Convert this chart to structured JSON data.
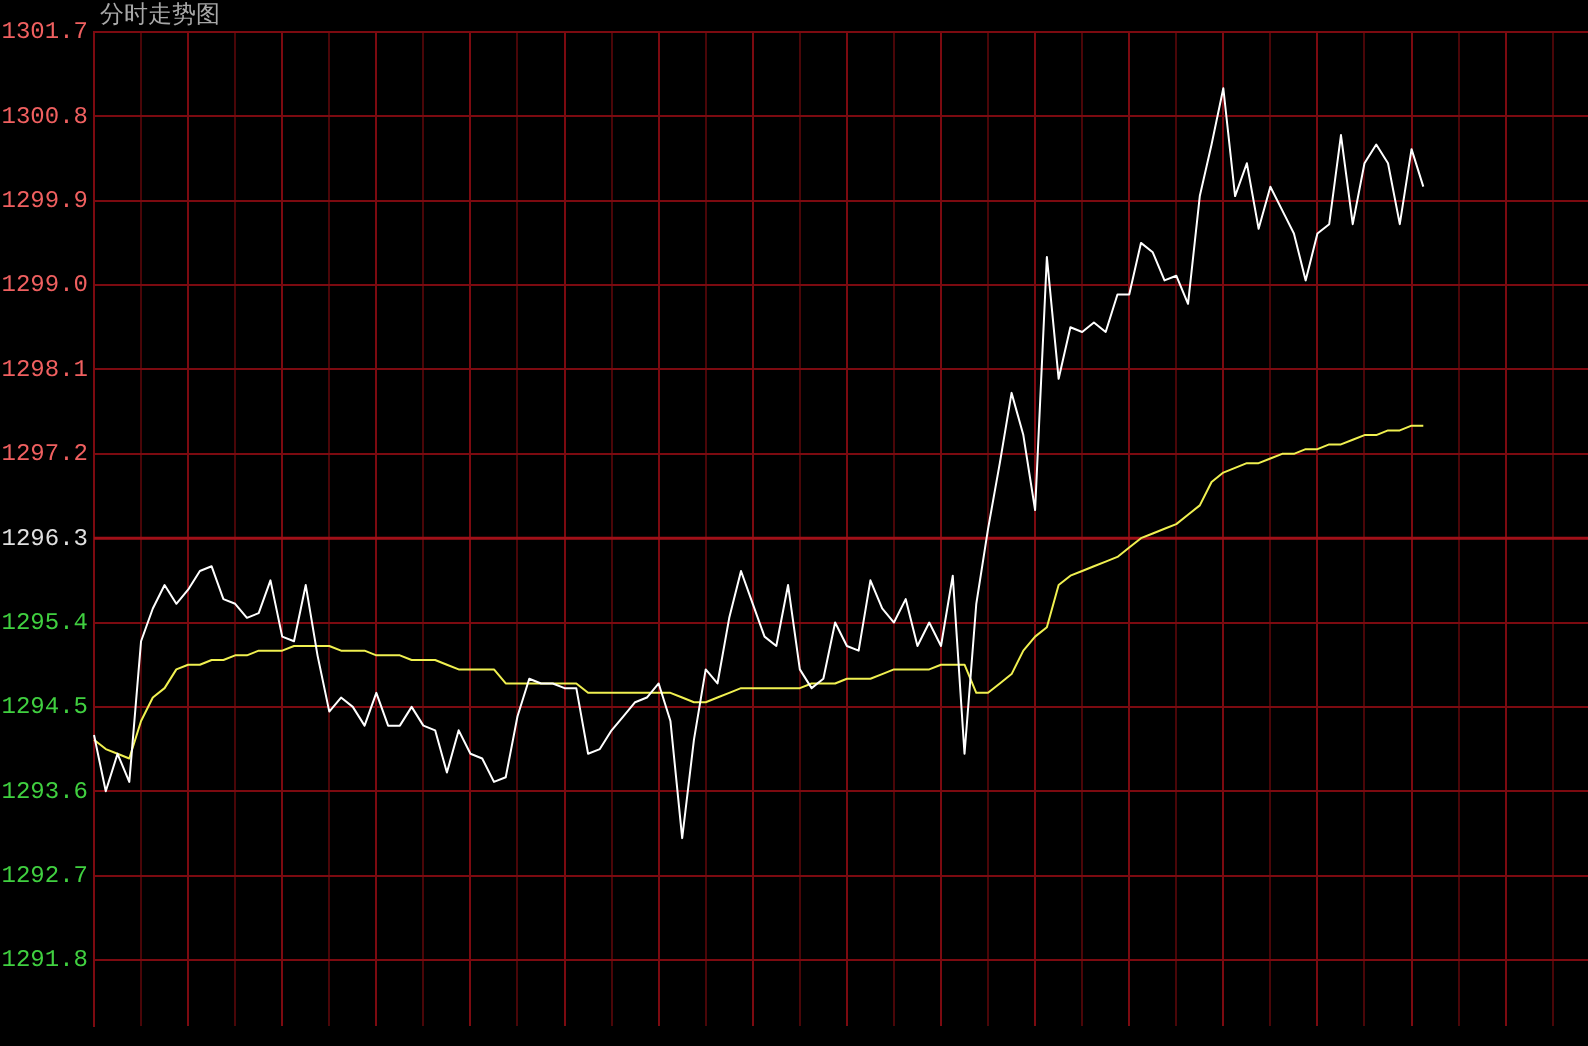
{
  "chart_data": {
    "type": "line",
    "title": "分时走势图",
    "categories": [
      null,
      null,
      null,
      null,
      null,
      null,
      null,
      null,
      null,
      null,
      null,
      null,
      null,
      null,
      null,
      null,
      null,
      null,
      null,
      null,
      null,
      null,
      null,
      null,
      null,
      null,
      null,
      null,
      null,
      null,
      null,
      null,
      null,
      null,
      null,
      null,
      null,
      null,
      null,
      null,
      null,
      null,
      null,
      null,
      null,
      null,
      null,
      null,
      null,
      null,
      null,
      null,
      null,
      null,
      null,
      null,
      null,
      null,
      null,
      null,
      null,
      null,
      null,
      null,
      null,
      null,
      null,
      null,
      null,
      null,
      null,
      null,
      null,
      null,
      null,
      null,
      null,
      null,
      null,
      null,
      null,
      null,
      null,
      null,
      null,
      null,
      null,
      null,
      null,
      null,
      null,
      null,
      null,
      null,
      null,
      null,
      null,
      null,
      null,
      null,
      null,
      null,
      null,
      null,
      null,
      null,
      null,
      null,
      null,
      null,
      null,
      null,
      null,
      null,
      null,
      null,
      null,
      null,
      null,
      null,
      null,
      null,
      null,
      null,
      null,
      null,
      null,
      null
    ],
    "series": [
      {
        "color": "#ffffff",
        "values": [
          1294.2,
          1293.6,
          1294.0,
          1293.7,
          1295.2,
          1295.55,
          1295.8,
          1295.6,
          1295.75,
          1295.95,
          1296.0,
          1295.65,
          1295.6,
          1295.45,
          1295.5,
          1295.85,
          1295.25,
          1295.2,
          1295.8,
          1295.05,
          1294.45,
          1294.6,
          1294.5,
          1294.3,
          1294.65,
          1294.3,
          1294.3,
          1294.5,
          1294.3,
          1294.25,
          1293.8,
          1294.25,
          1294.0,
          1293.95,
          1293.7,
          1293.75,
          1294.4,
          1294.8,
          1294.75,
          1294.75,
          1294.7,
          1294.7,
          1294.0,
          1294.05,
          1294.25,
          1294.4,
          1294.55,
          1294.6,
          1294.75,
          1294.35,
          1293.1,
          1294.15,
          1294.9,
          1294.75,
          1295.45,
          1295.95,
          1295.6,
          1295.25,
          1295.15,
          1295.8,
          1294.9,
          1294.7,
          1294.8,
          1295.4,
          1295.15,
          1295.1,
          1295.85,
          1295.55,
          1295.4,
          1295.65,
          1295.15,
          1295.4,
          1295.15,
          1295.9,
          1294.0,
          1295.6,
          1296.4,
          1297.1,
          1297.85,
          1297.4,
          1296.6,
          1299.3,
          1298.0,
          1298.55,
          1298.5,
          1298.6,
          1298.5,
          1298.9,
          1298.9,
          1299.45,
          1299.35,
          1299.05,
          1299.1,
          1298.8,
          1299.95,
          1300.5,
          1301.1,
          1299.95,
          1300.3,
          1299.6,
          1300.05,
          1299.8,
          1299.55,
          1299.05,
          1299.55,
          1299.65,
          1300.6,
          1299.65,
          1300.3,
          1300.5,
          1300.3,
          1299.65,
          1300.45,
          1300.05,
          null,
          null,
          null,
          null,
          null,
          null,
          null,
          null,
          null,
          null,
          null,
          null,
          null,
          null
        ]
      },
      {
        "color": "#f0f050",
        "values": [
          1294.15,
          1294.05,
          1294.0,
          1293.95,
          1294.35,
          1294.6,
          1294.7,
          1294.9,
          1294.95,
          1294.95,
          1295.0,
          1295.0,
          1295.05,
          1295.05,
          1295.1,
          1295.1,
          1295.1,
          1295.15,
          1295.15,
          1295.15,
          1295.15,
          1295.1,
          1295.1,
          1295.1,
          1295.05,
          1295.05,
          1295.05,
          1295.0,
          1295.0,
          1295.0,
          1294.95,
          1294.9,
          1294.9,
          1294.9,
          1294.9,
          1294.75,
          1294.75,
          1294.75,
          1294.75,
          1294.75,
          1294.75,
          1294.75,
          1294.65,
          1294.65,
          1294.65,
          1294.65,
          1294.65,
          1294.65,
          1294.65,
          1294.65,
          1294.6,
          1294.55,
          1294.55,
          1294.6,
          1294.65,
          1294.7,
          1294.7,
          1294.7,
          1294.7,
          1294.7,
          1294.7,
          1294.75,
          1294.75,
          1294.75,
          1294.8,
          1294.8,
          1294.8,
          1294.85,
          1294.9,
          1294.9,
          1294.9,
          1294.9,
          1294.95,
          1294.95,
          1294.95,
          1294.65,
          1294.65,
          1294.75,
          1294.85,
          1295.1,
          1295.25,
          1295.35,
          1295.8,
          1295.9,
          1295.95,
          1296.0,
          1296.05,
          1296.1,
          1296.2,
          1296.3,
          1296.35,
          1296.4,
          1296.45,
          1296.55,
          1296.65,
          1296.9,
          1297.0,
          1297.05,
          1297.1,
          1297.1,
          1297.15,
          1297.2,
          1297.2,
          1297.25,
          1297.25,
          1297.3,
          1297.3,
          1297.35,
          1297.4,
          1297.4,
          1297.45,
          1297.45,
          1297.5,
          1297.5,
          null,
          null,
          null,
          null,
          null,
          null,
          null,
          null,
          null,
          null,
          null,
          null,
          null,
          null
        ]
      }
    ],
    "ylim": [
      1291.1,
      1301.7
    ],
    "yticks": [
      1291.8,
      1292.7,
      1293.6,
      1294.5,
      1295.4,
      1296.3,
      1297.2,
      1298.1,
      {
        "value": 1299.0,
        "label": "1299.0"
      },
      1299.9,
      1300.8,
      1301.7
    ],
    "ref_lines": [
      {
        "axis": "y",
        "value": 1296.3,
        "color": "#a01018"
      }
    ],
    "grid": true,
    "tick_labels": "y"
  }
}
